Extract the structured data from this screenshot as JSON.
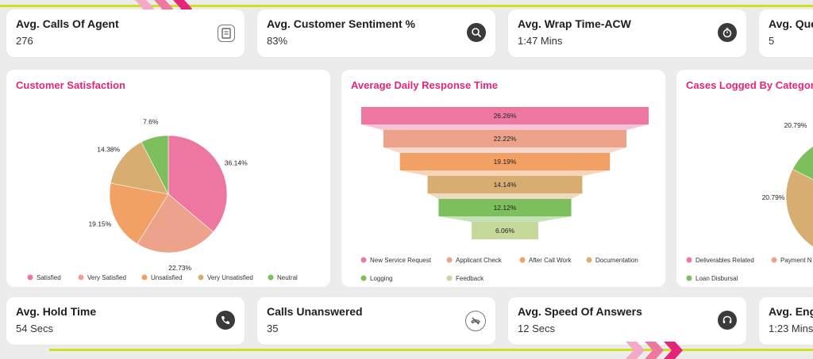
{
  "kpis_top": [
    {
      "title": "Avg. Calls Of Agent",
      "value": "276",
      "icon": "report-icon"
    },
    {
      "title": "Avg. Customer Sentiment %",
      "value": "83%",
      "icon": "search-person-icon"
    },
    {
      "title": "Avg. Wrap Time-ACW",
      "value": "1:47 Mins",
      "icon": "stopwatch-icon"
    },
    {
      "title": "Avg. Que",
      "value": "5",
      "icon": ""
    }
  ],
  "kpis_bottom": [
    {
      "title": "Avg. Hold Time",
      "value": "54 Secs",
      "icon": "phone-hold-icon"
    },
    {
      "title": "Calls Unanswered",
      "value": "35",
      "icon": "missed-call-icon"
    },
    {
      "title": "Avg. Speed Of Answers",
      "value": "12 Secs",
      "icon": "headset-icon"
    },
    {
      "title": "Avg. Enga",
      "value": "1:23 Mins",
      "icon": ""
    }
  ],
  "panels": {
    "satisfaction_title": "Customer Satisfaction",
    "response_title": "Average Daily Response Time",
    "cases_title": "Cases Logged By Category"
  },
  "colors": {
    "accent": "#e4257a",
    "lime": "#cfe021",
    "pink": "#ee77a1",
    "salmon": "#eda38b",
    "orange": "#f2a064",
    "tan": "#d7ad71",
    "green": "#7cbf5c",
    "lightgreen": "#c4d99a"
  },
  "chart_data": [
    {
      "type": "pie",
      "title": "Customer Satisfaction",
      "categories": [
        "Satisfied",
        "Very Satisfied",
        "Unsatisfied",
        "Very Unsatisfied",
        "Neutral"
      ],
      "values": [
        36.14,
        22.73,
        19.15,
        14.38,
        7.6
      ],
      "labels": [
        "36.14%",
        "22.73%",
        "19.15%",
        "14.38%",
        "7.6%"
      ],
      "colors": [
        "#ee77a1",
        "#eda38b",
        "#f2a064",
        "#d7ad71",
        "#7cbf5c"
      ],
      "legend": "bottom"
    },
    {
      "type": "bar",
      "subtype": "funnel",
      "title": "Average Daily Response Time",
      "categories": [
        "New Service Request",
        "Applicant Check",
        "After Call Work",
        "Documentation",
        "Logging",
        "Feedback"
      ],
      "values": [
        26.26,
        22.22,
        19.19,
        14.14,
        12.12,
        6.06
      ],
      "labels": [
        "26.26%",
        "22.22%",
        "19.19%",
        "14.14%",
        "12.12%",
        "6.06%"
      ],
      "colors": [
        "#ee77a1",
        "#eda38b",
        "#f2a064",
        "#d7ad71",
        "#7cbf5c",
        "#c4d99a"
      ],
      "legend": "bottom"
    },
    {
      "type": "pie",
      "title": "Cases Logged By Category",
      "categories": [
        "Deliverables Related",
        "Payment N",
        "Loan Disbursal"
      ],
      "visible_labels": [
        "20.79%",
        "20.79%"
      ],
      "colors": [
        "#ee77a1",
        "#eda38b",
        "#7cbf5c"
      ],
      "legend": "bottom"
    }
  ]
}
